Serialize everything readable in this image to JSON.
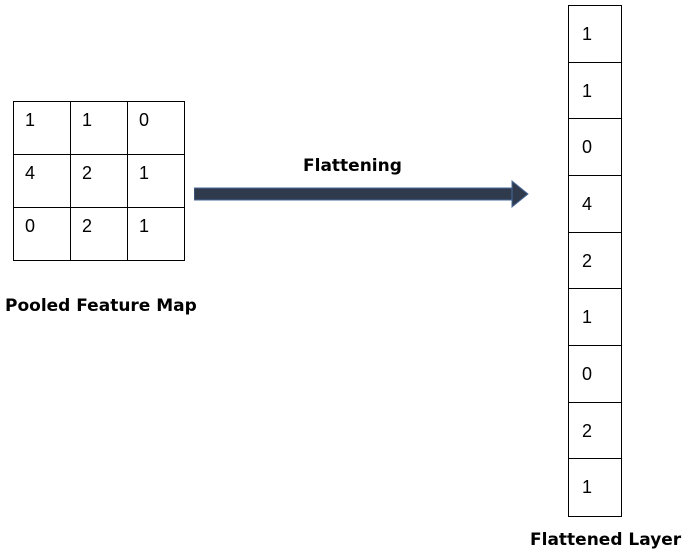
{
  "pooled_feature_map": {
    "title": "Pooled Feature Map",
    "rows": [
      [
        "1",
        "1",
        "0"
      ],
      [
        "4",
        "2",
        "1"
      ],
      [
        "0",
        "2",
        "1"
      ]
    ]
  },
  "arrow": {
    "label": "Flattening",
    "color": "#2f3a4d"
  },
  "flattened_layer": {
    "title": "Flattened Layer",
    "values": [
      "1",
      "1",
      "0",
      "4",
      "2",
      "1",
      "0",
      "2",
      "1"
    ]
  }
}
